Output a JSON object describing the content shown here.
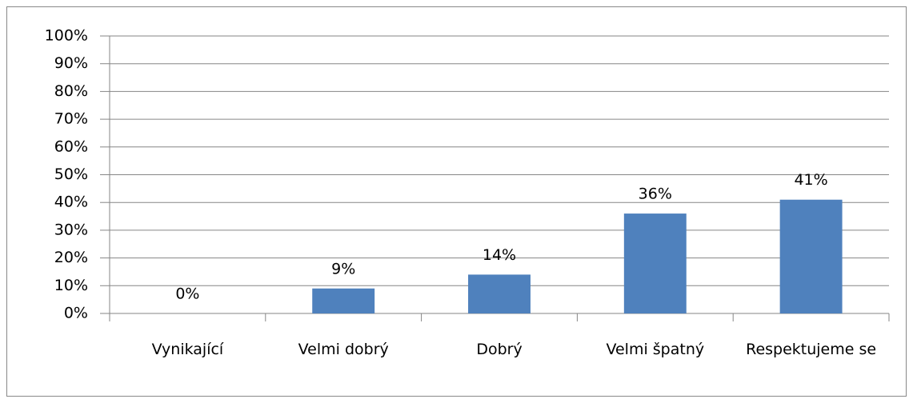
{
  "chart_data": {
    "type": "bar",
    "categories": [
      "Vynikající",
      "Velmi dobrý",
      "Dobrý",
      "Velmi špatný",
      "Respektujeme se"
    ],
    "values": [
      0,
      9,
      14,
      36,
      41
    ],
    "value_labels": [
      "0%",
      "9%",
      "14%",
      "36%",
      "41%"
    ],
    "color": "#4f81bd",
    "ylim": [
      0,
      100
    ],
    "yticks": [
      {
        "value": 0,
        "label": "0%"
      },
      {
        "value": 10,
        "label": "10%"
      },
      {
        "value": 20,
        "label": "20%"
      },
      {
        "value": 30,
        "label": "30%"
      },
      {
        "value": 40,
        "label": "40%"
      },
      {
        "value": 50,
        "label": "50%"
      },
      {
        "value": 60,
        "label": "60%"
      },
      {
        "value": 70,
        "label": "70%"
      },
      {
        "value": 80,
        "label": "80%"
      },
      {
        "value": 90,
        "label": "90%"
      },
      {
        "value": 100,
        "label": "100%"
      }
    ],
    "grid": true
  }
}
